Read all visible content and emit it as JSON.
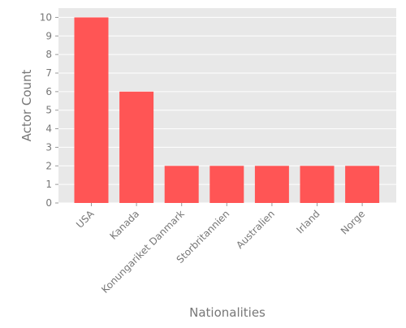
{
  "chart_data": {
    "type": "bar",
    "title": "",
    "xlabel": "Nationalities",
    "ylabel": "Actor Count",
    "categories": [
      "USA",
      "Kanada",
      "Konungariket Danmark",
      "Storbritannien",
      "Australien",
      "Irland",
      "Norge"
    ],
    "values": [
      10,
      6,
      2,
      2,
      2,
      2,
      2
    ],
    "ylim": [
      0,
      10.5
    ],
    "yticks": [
      0,
      1,
      2,
      3,
      4,
      5,
      6,
      7,
      8,
      9,
      10
    ],
    "grid": true,
    "legend": "none",
    "colors": {
      "bar": "#ff5555",
      "background": "#e8e8e8",
      "grid": "#ffffff",
      "text": "#777777"
    }
  }
}
